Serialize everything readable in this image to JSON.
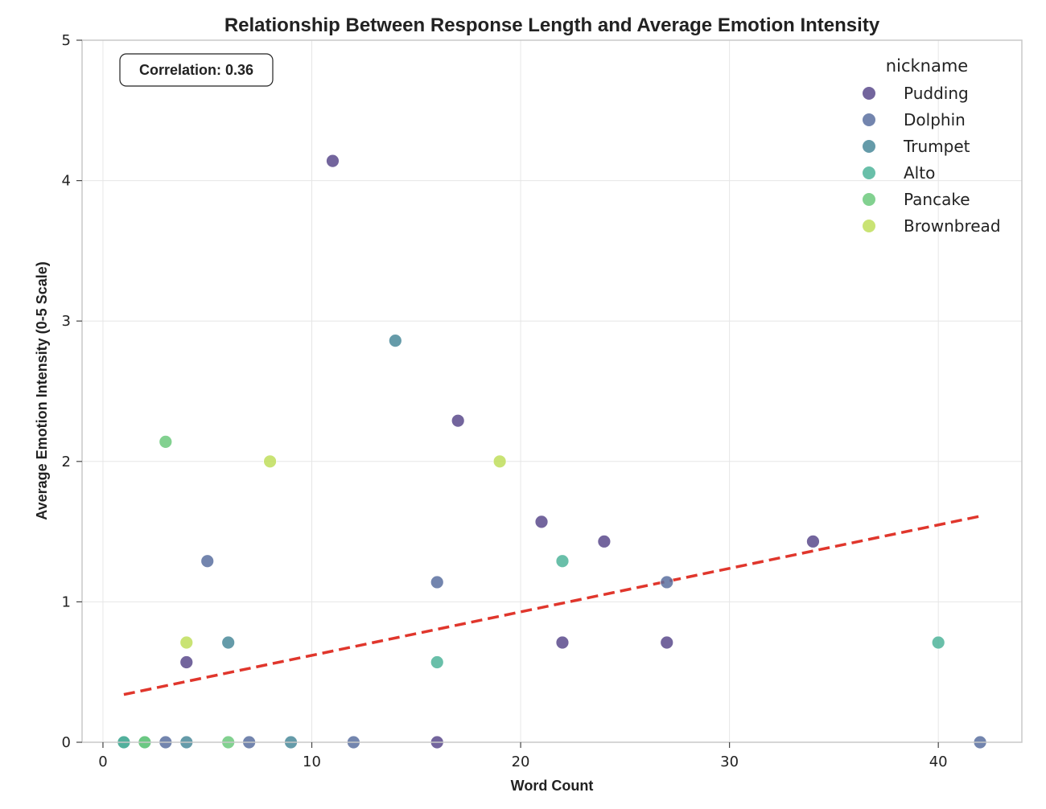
{
  "chart_data": {
    "type": "scatter",
    "title": "Relationship Between Response Length and Average Emotion Intensity",
    "xlabel": "Word Count",
    "ylabel": "Average Emotion Intensity (0-5 Scale)",
    "xlim": [
      -1,
      44
    ],
    "ylim": [
      0,
      5
    ],
    "xticks": [
      0,
      10,
      20,
      30,
      40
    ],
    "yticks": [
      0,
      1,
      2,
      3,
      4,
      5
    ],
    "grid": true,
    "annotation": "Correlation: 0.36",
    "legend": {
      "title": "nickname",
      "placement": "top-right"
    },
    "series": [
      {
        "name": "Pudding",
        "color": "#5a4a8c",
        "points": [
          [
            11,
            4.14
          ],
          [
            17,
            2.29
          ],
          [
            21,
            1.57
          ],
          [
            24,
            1.43
          ],
          [
            34,
            1.43
          ],
          [
            22,
            0.71
          ],
          [
            27,
            0.71
          ],
          [
            4,
            0.57
          ],
          [
            16,
            0
          ]
        ]
      },
      {
        "name": "Dolphin",
        "color": "#5a70a0",
        "points": [
          [
            5,
            1.29
          ],
          [
            16,
            1.14
          ],
          [
            27,
            1.14
          ],
          [
            3,
            0
          ],
          [
            7,
            0
          ],
          [
            12,
            0
          ],
          [
            42,
            0
          ]
        ]
      },
      {
        "name": "Trumpet",
        "color": "#4a8a9a",
        "points": [
          [
            14,
            2.86
          ],
          [
            6,
            0.71
          ],
          [
            1,
            0
          ],
          [
            4,
            0
          ],
          [
            9,
            0
          ]
        ]
      },
      {
        "name": "Alto",
        "color": "#4fb49a",
        "points": [
          [
            22,
            1.29
          ],
          [
            16,
            0.57
          ],
          [
            40,
            0.71
          ],
          [
            1,
            0
          ],
          [
            2,
            0
          ]
        ]
      },
      {
        "name": "Pancake",
        "color": "#6cc97c",
        "points": [
          [
            3,
            2.14
          ],
          [
            2,
            0
          ],
          [
            6,
            0
          ]
        ]
      },
      {
        "name": "Brownbread",
        "color": "#bfde5c",
        "points": [
          [
            8,
            2.0
          ],
          [
            19,
            2.0
          ],
          [
            4,
            0.71
          ]
        ]
      }
    ],
    "trendline": {
      "color": "#e0362c",
      "x": [
        1,
        42
      ],
      "y": [
        0.34,
        1.61
      ]
    }
  }
}
